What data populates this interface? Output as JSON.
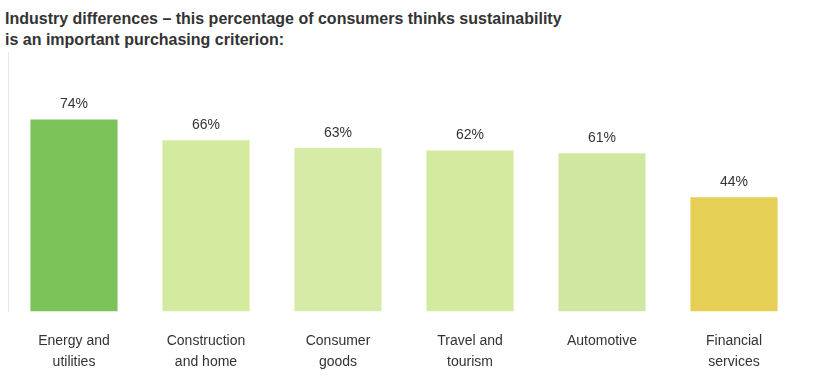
{
  "chart_data": {
    "type": "bar",
    "title": "Industry differences – this percentage of consumers thinks sustainability is an important purchasing criterion:",
    "categories": [
      "Energy and utilities",
      "Construction and home",
      "Consumer goods",
      "Travel and tourism",
      "Automotive",
      "Financial services"
    ],
    "values": [
      74,
      66,
      63,
      62,
      61,
      44
    ],
    "value_labels": [
      "74%",
      "66%",
      "63%",
      "62%",
      "61%",
      "44%"
    ],
    "colors": [
      "#7cc35a",
      "#d3ea9f",
      "#d6eba6",
      "#d3ea9f",
      "#cfe7a0",
      "#e6cf55"
    ],
    "ylim": [
      0,
      100
    ],
    "grid": false,
    "data_labels": true,
    "tick_labels": "x"
  }
}
